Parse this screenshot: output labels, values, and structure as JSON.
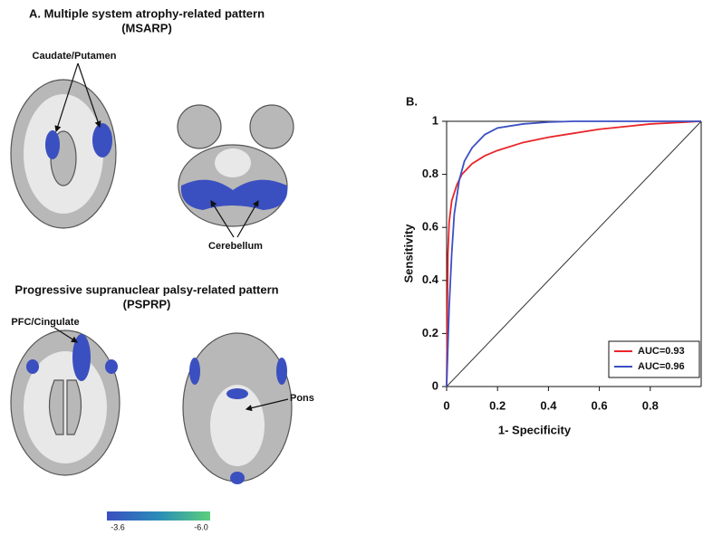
{
  "panel_a": {
    "title": "A. Multiple system atrophy-related pattern",
    "title_abbr": "(MSARP)",
    "label_caudate": "Caudate/Putamen",
    "label_cerebellum": "Cerebellum",
    "subtitle": "Progressive supranuclear palsy-related pattern",
    "subtitle_abbr": "(PSPRP)",
    "label_pfc": "PFC/Cingulate",
    "label_pons": "Pons",
    "colorbar": {
      "low": "-3.6",
      "high": "-6.0"
    }
  },
  "chart_data": {
    "type": "line",
    "panel_label": "B.",
    "x_label": "1- Specificity",
    "y_label": "Sensitivity",
    "xlim": [
      0,
      1
    ],
    "ylim": [
      0,
      1
    ],
    "xticks": [
      0,
      0.2,
      0.4,
      0.6,
      0.8
    ],
    "yticks": [
      0,
      0.2,
      0.4,
      0.6,
      0.8,
      1
    ],
    "legend": "lower right",
    "series": [
      {
        "name": "AUC=0.93",
        "color": "#e8262b",
        "x": [
          0,
          0.005,
          0.01,
          0.02,
          0.04,
          0.06,
          0.1,
          0.15,
          0.2,
          0.3,
          0.4,
          0.5,
          0.6,
          0.7,
          0.8,
          0.9,
          1
        ],
        "values": [
          0,
          0.5,
          0.62,
          0.7,
          0.76,
          0.8,
          0.84,
          0.87,
          0.89,
          0.92,
          0.94,
          0.955,
          0.97,
          0.98,
          0.99,
          0.995,
          1
        ]
      },
      {
        "name": "AUC=0.96",
        "color": "#3b4fc4",
        "x": [
          0,
          0.01,
          0.02,
          0.03,
          0.05,
          0.07,
          0.1,
          0.15,
          0.2,
          0.3,
          0.4,
          0.5,
          1
        ],
        "values": [
          0,
          0.3,
          0.5,
          0.65,
          0.78,
          0.85,
          0.9,
          0.95,
          0.975,
          0.99,
          0.997,
          1,
          1
        ]
      }
    ]
  }
}
